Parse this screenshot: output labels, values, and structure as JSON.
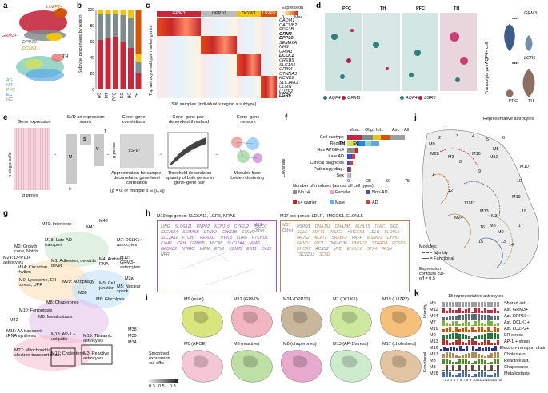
{
  "panels": [
    "a",
    "b",
    "c",
    "d",
    "e",
    "f",
    "g",
    "h",
    "i",
    "j",
    "k"
  ],
  "colors": {
    "grm3": "#c5283d",
    "dpp10": "#7f8c8d",
    "dclk1": "#f1c40f",
    "luzp2": "#d35400",
    "ag": "#8fd3c1",
    "mt": "#5aa9e6",
    "pfc": "#d4e157",
    "ec": "#1e88e5",
    "hc": "#e57373",
    "m9": "#9b59b6",
    "m17": "#b5835a"
  },
  "a": {
    "luzp2": "LUZP2+",
    "grm3": "GRM3+",
    "dpp10": "DPP10+",
    "dclk1": "DCLK1+",
    "th": "TH",
    "legend": [
      "AG",
      "MT",
      "PFC",
      "EC",
      "HC"
    ]
  },
  "b": {
    "ylabel": "Subtype percentage by region",
    "yticks": [
      "0",
      "20",
      "40",
      "60",
      "80",
      "100"
    ],
    "categories": [
      "AG",
      "MT",
      "PFC",
      "EC",
      "HC",
      "TH"
    ]
  },
  "chart_data": {
    "type": "bar",
    "title": "Subtype percentage by region",
    "xlabel": "",
    "ylabel": "Subtype percentage by region",
    "ylim": [
      0,
      100
    ],
    "categories": [
      "AG",
      "MT",
      "PFC",
      "EC",
      "HC",
      "TH"
    ],
    "series": [
      {
        "name": "GRM3+",
        "values": [
          62,
          64,
          66,
          60,
          52,
          20
        ]
      },
      {
        "name": "DPP10+",
        "values": [
          32,
          30,
          28,
          33,
          38,
          14
        ]
      },
      {
        "name": "DCLK1+",
        "values": [
          6,
          6,
          6,
          7,
          10,
          10
        ]
      },
      {
        "name": "LUZP2+",
        "values": [
          0,
          0,
          0,
          0,
          0,
          56
        ]
      }
    ]
  },
  "c": {
    "header": [
      "GRM3",
      "DPP10",
      "DCLK1",
      "LUZP2"
    ],
    "ylabel": "Top astrocyte subtype marker genes",
    "genes": [
      "CADM1",
      "CACNB2",
      "PDE3B",
      "GRM3",
      "DPP10",
      "SEMA6A",
      "NHS",
      "GRIA1",
      "DCLK1",
      "CREB5",
      "SLC1A1",
      "GRIK4",
      "CTNNA3",
      "KCND2",
      "SLC14A1",
      "CLMN",
      "LUZP2",
      "LGR6"
    ],
    "bold_genes": [
      "GRM3",
      "DPP10",
      "DCLK1",
      "LGR6"
    ],
    "legend_title": "Expression",
    "legend_min": "0",
    "legend_max": "Max.",
    "xlabel": "396 samples (individual × region × subtype)"
  },
  "d": {
    "labels": [
      "PFC",
      "TH",
      "PFC",
      "TH"
    ],
    "legend1": [
      "AQP4",
      "GRM3"
    ],
    "legend2": [
      "AQP4",
      "LGR6"
    ],
    "ylabel": "Transcripts per AQP4+ cell",
    "gene1": "GRM3",
    "gene2": "LGR6",
    "sig": "****",
    "xticks": [
      "PFC",
      "TH"
    ]
  },
  "e": {
    "steps": [
      "Gene expression",
      "SVD on expression matrix",
      "Gene–gene correlations",
      "Gene–gene pair-dependent threshold",
      "Gene–gene network"
    ],
    "y1": "n single cells",
    "x1": "g genes",
    "u": "U",
    "s": "S",
    "v": "V",
    "t": "T",
    "k": "k",
    "n2": "n single cells",
    "approx": "Approximation for sample-decorrelated gene-level correlation",
    "approx2": "(ρ = 0, or multiple ρ ∈ [0,1])",
    "vsv": "VS²Vᵀ",
    "g2": "g genes",
    "gg": "g genes",
    "thresh": "Threshold depends on sparsity of both genes in gene–gene pair",
    "modules": "Modules from Leiden clustering"
  },
  "f": {
    "label": "Covariate",
    "rows": [
      "Cell subtype",
      "Region",
      "Has APOE-ε4",
      "Late AD",
      "Clinical diagnosis",
      "Pathology diag.",
      "Sex"
    ],
    "top": [
      "Vasc.",
      "Olig.",
      "Inh.",
      "Ast.",
      "All"
    ],
    "tags": [
      "TH",
      "EC"
    ],
    "xlabel": "Number of modules (across all cell types)",
    "xticks": [
      "0",
      "25",
      "50",
      "75"
    ],
    "legend": [
      "No ε4",
      "ε4 carrier",
      "Female",
      "Male",
      "Non-AD",
      "AD"
    ]
  },
  "g": {
    "labels": [
      "M40: Interferon",
      "M43",
      "M41",
      "M18: Late-AD transport",
      "M2: Growth cone, Notch",
      "M7: DCLK1+ astrocytes",
      "M1: Adhesion, dendrite devel.",
      "M24: DPP10+ astrocytes",
      "M14: Circadian rhythm",
      "M4: Ambient RNA",
      "M12: GRM3+ astrocytes",
      "M0: Lysosome, ER stress, UPR",
      "M3a",
      "M29: Autophagy",
      "M9: Cell junction",
      "M5: Nuclear speck",
      "M30",
      "M6: Glycolysis",
      "M8: Chaperones",
      "M42",
      "M15: AA transport, tRNA synthesis",
      "M13: AP-1 + ubiquitin",
      "M19: Thalamic astrocytes",
      "M27: Mitochondrial electron-transport chain",
      "M17: Cholesterol",
      "M3: Reactive astrocytes",
      "M38",
      "M39",
      "M34",
      "M10: Ferroptosis",
      "M8: Metallostasis"
    ]
  },
  "h": {
    "title1": "M19 top genes: SLC6A11, LGR6, NRAS",
    "title2": "M17 top genes: LDLR, HMGCS1, ELOVL5",
    "legend1": [
      "M19",
      "Other"
    ],
    "legend2": [
      "M17",
      "Other"
    ],
    "genes1": [
      "LING",
      "SLC6A11",
      "ENPP2",
      "KCNJ16",
      "CYP2J2",
      "PDZD3",
      "SLC29A4",
      "SEMA6B",
      "ETNK2",
      "CDK11B",
      "STKM3",
      "SLC2A11",
      "FTCH1",
      "FERD3L",
      "ITPKB",
      "LGR6",
      "PTCHD1",
      "KIAA1",
      "CRH",
      "GPM6B",
      "ABCA8",
      "SLC12A4",
      "NRAS",
      "GABRB2",
      "NTRK2",
      "IMPK",
      "ETV1",
      "KCNJ3",
      "EST1",
      "CA12",
      "NPR"
    ],
    "genes2": [
      "HSPD1",
      "DNAJA1",
      "DNAJB6",
      "KLHL15",
      "TFRC",
      "SCD",
      "SQLE",
      "FDFT1",
      "INSIG1",
      "HMGCS1",
      "LDLR",
      "ELOVL5",
      "FADS2",
      "ACAT2",
      "SREBF2",
      "PKFP",
      "MSMO1",
      "CYP51",
      "GEND",
      "NPC1",
      "TMEM136",
      "HMGCR",
      "STARD4",
      "PCSK9",
      "DHCR7",
      "ACSS2",
      "MVD",
      "ELOVL6",
      "STX4",
      "FASN",
      "TSC22D3",
      "SC5D"
    ]
  },
  "i": {
    "titles_top": [
      "M9 (main)",
      "M12 (GRM3)",
      "M24 (DPP10)",
      "M7 (DCLK1)",
      "M19 (LUZP2)"
    ],
    "titles_bot": [
      "M0 (APOE)",
      "M3 (reactive)",
      "M8 (chaperones)",
      "M13 (AP-1/stress)",
      "M17 (cholesterol)"
    ],
    "legend_title": "Smoothed expression cut-offs:",
    "ticks": [
      "0.3",
      "0.5",
      "0.8"
    ]
  },
  "j": {
    "title": "Representative astrocytes",
    "nums": [
      "1",
      "2",
      "3",
      "4",
      "5",
      "6",
      "7",
      "8",
      "9",
      "10",
      "11",
      "12",
      "13",
      "14",
      "15",
      "16",
      "17",
      "18"
    ],
    "mlabels": [
      "M9",
      "M28",
      "M3",
      "M16",
      "M5",
      "M12",
      "M10",
      "M19",
      "M24",
      "M13",
      "M7",
      "M3",
      "M8",
      "M0"
    ],
    "legend_title": "Modules:",
    "legend1": "= Identity",
    "legend2": "= Functional",
    "cont": "Expression contours cut-off = 0.5"
  },
  "k": {
    "title": "18 representative astrocytes",
    "groups": [
      "Identity",
      "Functional"
    ],
    "rows": [
      {
        "m": "M9",
        "label": "Shared ast.",
        "color": "#9e9e9e"
      },
      {
        "m": "M12",
        "label": "Ast. GRM3+",
        "color": "#c5283d"
      },
      {
        "m": "M24",
        "label": "Ast. DPP10+",
        "color": "#5b6b7a"
      },
      {
        "m": "M7",
        "label": "Ast. DCLK1+",
        "color": "#7cb342"
      },
      {
        "m": "M19",
        "label": "Ast. LUZP2+",
        "color": "#d35400"
      },
      {
        "m": "M0",
        "label": "ER stress",
        "color": "#1f7a3a"
      },
      {
        "m": "M13",
        "label": "AP-1 + stress",
        "color": "#c62828"
      },
      {
        "m": "M16",
        "label": "Electron-transport chain",
        "color": "#283593"
      },
      {
        "m": "M17",
        "label": "Cholesterol",
        "color": "#b08d57"
      },
      {
        "m": "M3",
        "label": "Reactive ast.",
        "color": "#558b2f"
      },
      {
        "m": "M8",
        "label": "Chaperones",
        "color": "#6d4c41"
      },
      {
        "m": "M28",
        "label": "Metallostasis",
        "color": "#4a6fa5"
      }
    ],
    "xticks": [
      "1",
      "2",
      "3",
      "4",
      "5",
      "6",
      "7",
      "8",
      "9",
      "10",
      "11",
      "12",
      "13",
      "14",
      "15",
      "16",
      "17",
      "18"
    ]
  }
}
